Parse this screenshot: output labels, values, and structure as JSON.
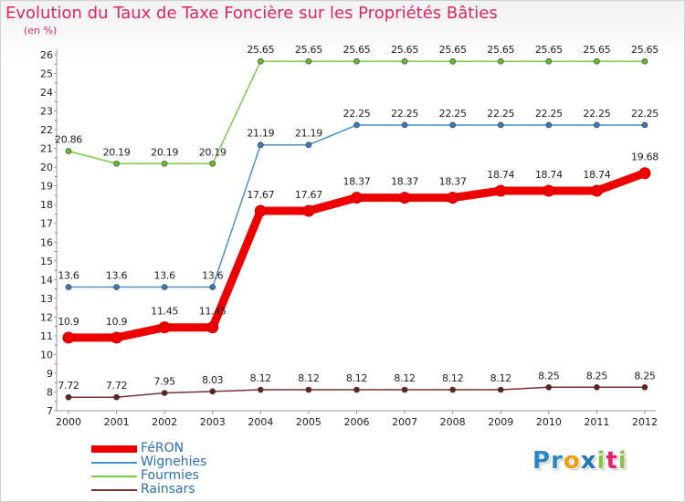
{
  "header": {
    "title": "Evolution du Taux de Taxe Foncière sur les Propriétés Bâties",
    "unit": "(en %)"
  },
  "logo": {
    "letters": [
      "P",
      "r",
      "o",
      "x",
      "i",
      "t",
      "i"
    ],
    "colors": [
      "#2e86c1",
      "#2e86c1",
      "#f39c12",
      "#1f77b4",
      "#8bc34a",
      "#e91e63",
      "#8bc34a"
    ]
  },
  "chart_data": {
    "type": "line",
    "title": "Evolution du Taux de Taxe Foncière sur les Propriétés Bâties",
    "ylabel": "(en %)",
    "xlabel": "",
    "ylim": [
      7,
      26
    ],
    "yticks": [
      7,
      8,
      9,
      10,
      11,
      12,
      13,
      14,
      15,
      16,
      17,
      18,
      19,
      20,
      21,
      22,
      23,
      24,
      25,
      26
    ],
    "categories": [
      "2000",
      "2001",
      "2002",
      "2003",
      "2004",
      "2005",
      "2006",
      "2007",
      "2008",
      "2009",
      "2010",
      "2011",
      "2012"
    ],
    "grid": false,
    "legend_position": "bottom-left",
    "series": [
      {
        "name": "FéRON",
        "color": "#ee0000",
        "dot_color": "#cc0000",
        "emphasis": true,
        "values": [
          10.9,
          10.9,
          11.45,
          11.45,
          17.67,
          17.67,
          18.37,
          18.37,
          18.37,
          18.74,
          18.74,
          18.74,
          19.68
        ],
        "labels": [
          "10.9",
          "10.9",
          "11.45",
          "11.45",
          "17.67",
          "17.67",
          "18.37",
          "18.37",
          "18.37",
          "18.74",
          "18.74",
          "18.74",
          "19.68"
        ]
      },
      {
        "name": "Wignehies",
        "color": "#4a90c8",
        "dot_color": "#3a7ab8",
        "emphasis": false,
        "values": [
          13.6,
          13.6,
          13.6,
          13.6,
          21.19,
          21.19,
          22.25,
          22.25,
          22.25,
          22.25,
          22.25,
          22.25,
          22.25
        ],
        "labels": [
          "13.6",
          "13.6",
          "13.6",
          "13.6",
          "21.19",
          "21.19",
          "22.25",
          "22.25",
          "22.25",
          "22.25",
          "22.25",
          "22.25",
          "22.25"
        ]
      },
      {
        "name": "Fourmies",
        "color": "#77cc44",
        "dot_color": "#66bb33",
        "emphasis": false,
        "values": [
          20.86,
          20.19,
          20.19,
          20.19,
          25.65,
          25.65,
          25.65,
          25.65,
          25.65,
          25.65,
          25.65,
          25.65,
          25.65
        ],
        "labels": [
          "20.86",
          "20.19",
          "20.19",
          "20.19",
          "25.65",
          "25.65",
          "25.65",
          "25.65",
          "25.65",
          "25.65",
          "25.65",
          "25.65",
          "25.65"
        ]
      },
      {
        "name": "Rainsars",
        "color": "#7a3030",
        "dot_color": "#6a2020",
        "emphasis": false,
        "values": [
          7.72,
          7.72,
          7.95,
          8.03,
          8.12,
          8.12,
          8.12,
          8.12,
          8.12,
          8.12,
          8.25,
          8.25,
          8.25
        ],
        "labels": [
          "7.72",
          "7.72",
          "7.95",
          "8.03",
          "8.12",
          "8.12",
          "8.12",
          "8.12",
          "8.12",
          "8.12",
          "8.25",
          "8.25",
          "8.25"
        ]
      }
    ]
  }
}
